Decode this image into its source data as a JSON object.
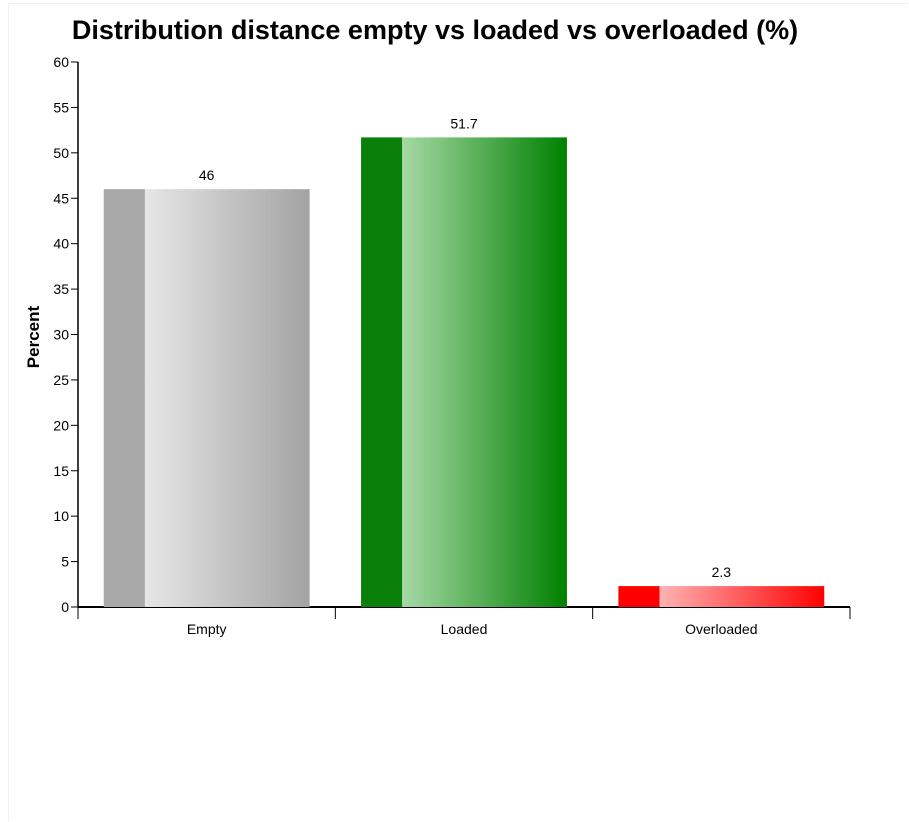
{
  "chart_data": {
    "type": "bar",
    "title": "Distribution distance empty vs loaded vs overloaded (%)",
    "xlabel": "",
    "ylabel": "Percent",
    "ylim": [
      0,
      60
    ],
    "yticks": [
      0,
      5,
      10,
      15,
      20,
      25,
      30,
      35,
      40,
      45,
      50,
      55,
      60
    ],
    "categories": [
      "Empty",
      "Loaded",
      "Overloaded"
    ],
    "values": [
      46,
      51.7,
      2.3
    ],
    "data_labels": [
      "46",
      "51.7",
      "2.3"
    ],
    "colors": {
      "Empty": {
        "base": "#a8a8a8",
        "light": "#e6e6e6",
        "dark": "#a3a3a3"
      },
      "Loaded": {
        "base": "#0a7f0a",
        "light": "#a5d9a5",
        "dark": "#008000"
      },
      "Overloaded": {
        "base": "#ff0000",
        "light": "#ffb3b3",
        "dark": "#ff0000"
      }
    },
    "grid": false,
    "legend": "none"
  }
}
